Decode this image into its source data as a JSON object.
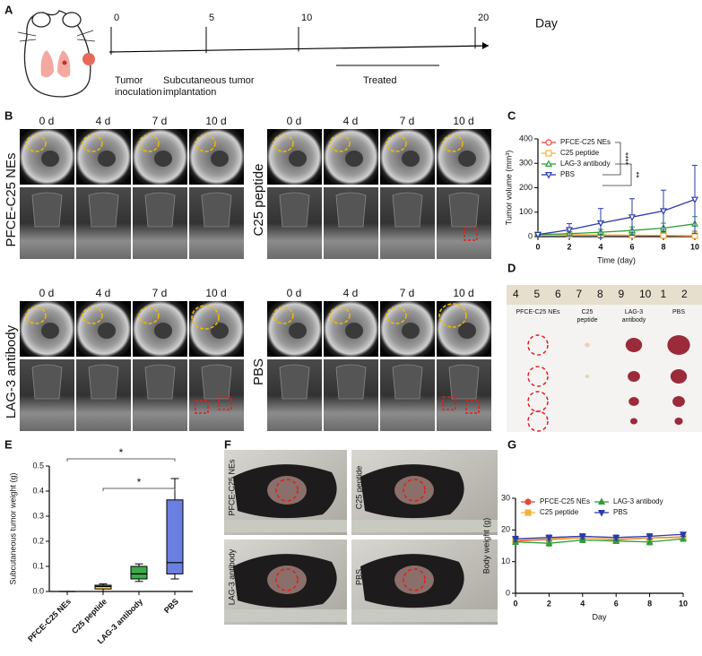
{
  "panel_labels": [
    "A",
    "B",
    "C",
    "D",
    "E",
    "F",
    "G"
  ],
  "timeline": {
    "ticks": [
      "0",
      "5",
      "10",
      "20"
    ],
    "unit": "Day",
    "events": [
      [
        "Tumor",
        "inoculation"
      ],
      [
        "Subcutaneous tumor",
        "implantation"
      ],
      [
        "Treated"
      ]
    ]
  },
  "mri": {
    "days": [
      "0 d",
      "4 d",
      "7 d",
      "10 d"
    ],
    "groups": [
      "PFCE-C25 NEs",
      "C25 peptide",
      "LAG-3 antibody",
      "PBS"
    ]
  },
  "excised_tumors": {
    "ruler": [
      "4",
      "5",
      "6",
      "7",
      "8",
      "9",
      "10",
      "1",
      "2"
    ],
    "groups": [
      [
        "PFCE-C25 NEs"
      ],
      [
        "C25",
        "peptide"
      ],
      [
        "LAG-3",
        "antibody"
      ],
      [
        "PBS"
      ]
    ]
  },
  "mouse_photos": {
    "groups": [
      "PFCE-C25 NEs",
      "C25 peptide",
      "LAG-3 antibody",
      "PBS"
    ]
  },
  "chart_data": [
    {
      "type": "line",
      "x": [
        0,
        2,
        4,
        6,
        8,
        10
      ],
      "xlim": [
        0,
        10
      ],
      "xticks": [
        0,
        2,
        4,
        6,
        8,
        10
      ],
      "ylim": [
        0,
        400
      ],
      "yticks": [
        0,
        100,
        200,
        300,
        400
      ],
      "x_label": "Time (day)",
      "y_label": "Tumor volume (mm³)",
      "legend": "upper left",
      "filled": false,
      "annotations": [
        "****",
        "**"
      ],
      "series": [
        {
          "name": "PFCE-C25 NEs",
          "color": "#e8463a",
          "marker": "circle",
          "values": [
            8,
            7,
            6,
            5,
            4,
            2
          ],
          "errors": [
            3,
            3,
            3,
            3,
            3,
            2
          ]
        },
        {
          "name": "C25 peptide",
          "color": "#f2b33d",
          "marker": "square",
          "values": [
            8,
            8,
            7,
            6,
            5,
            4
          ],
          "errors": [
            3,
            3,
            3,
            3,
            3,
            3
          ]
        },
        {
          "name": "LAG-3 antibody",
          "color": "#2e9e3a",
          "marker": "triangle",
          "values": [
            8,
            12,
            18,
            25,
            35,
            52
          ],
          "errors": [
            3,
            8,
            12,
            15,
            20,
            30
          ]
        },
        {
          "name": "PBS",
          "color": "#2a3bab",
          "marker": "triangle-down",
          "values": [
            8,
            28,
            55,
            80,
            105,
            152
          ],
          "errors": [
            5,
            25,
            60,
            75,
            85,
            140
          ]
        }
      ]
    },
    {
      "type": "box",
      "categories": [
        "PFCE-C25 NEs",
        "C25 peptide",
        "LAG-3 antibody",
        "PBS"
      ],
      "colors": [
        "#000000",
        "#f5c542",
        "#3cab4b",
        "#6b7fe0"
      ],
      "boxes": [
        {
          "min": 0,
          "q1": 0,
          "median": 0,
          "q3": 0,
          "max": 0
        },
        {
          "min": 0,
          "q1": 0.01,
          "median": 0.02,
          "q3": 0.025,
          "max": 0.03
        },
        {
          "min": 0.04,
          "q1": 0.05,
          "median": 0.07,
          "q3": 0.1,
          "max": 0.11
        },
        {
          "min": 0.05,
          "q1": 0.07,
          "median": 0.115,
          "q3": 0.365,
          "max": 0.45
        }
      ],
      "ylim": [
        0,
        0.5
      ],
      "yticks": [
        {
          "value": 0,
          "label": "0.0"
        },
        0.1,
        0.2,
        0.3,
        0.4,
        0.5
      ],
      "y_label": "Subcutaneous tumor weight (g)",
      "annotations": [
        "*",
        "*"
      ]
    },
    {
      "type": "line",
      "x": [
        0,
        2,
        4,
        6,
        8,
        10
      ],
      "xlim": [
        0,
        10
      ],
      "xticks": [
        0,
        2,
        4,
        6,
        8,
        10
      ],
      "ylim": [
        0,
        30
      ],
      "yticks": [
        0,
        10,
        20,
        30
      ],
      "x_label": "Day",
      "y_label": "Body weight (g)",
      "legend": "upper center",
      "filled": true,
      "series": [
        {
          "name": "PFCE-C25 NEs",
          "color": "#e8463a",
          "marker": "circle",
          "values": [
            16.5,
            17,
            17.5,
            17,
            17.5,
            17.8
          ],
          "errors": [
            0.8,
            0.8,
            0.8,
            0.8,
            0.8,
            0.8
          ]
        },
        {
          "name": "C25 peptide",
          "color": "#f2b33d",
          "marker": "square",
          "values": [
            16.8,
            17.2,
            17.6,
            16.8,
            17.4,
            17.6
          ],
          "errors": [
            0.8,
            0.8,
            0.8,
            0.8,
            0.8,
            0.8
          ]
        },
        {
          "name": "LAG-3 antibody",
          "color": "#2e9e3a",
          "marker": "triangle",
          "values": [
            16.2,
            15.8,
            16.8,
            16.5,
            16.2,
            17.2
          ],
          "errors": [
            0.8,
            0.9,
            0.8,
            0.8,
            0.9,
            0.8
          ]
        },
        {
          "name": "PBS",
          "color": "#2a3bab",
          "marker": "triangle-down",
          "values": [
            17.2,
            17.6,
            18,
            17.6,
            18,
            18.6
          ],
          "errors": [
            0.8,
            0.8,
            0.8,
            0.8,
            0.8,
            0.6
          ]
        }
      ]
    }
  ]
}
